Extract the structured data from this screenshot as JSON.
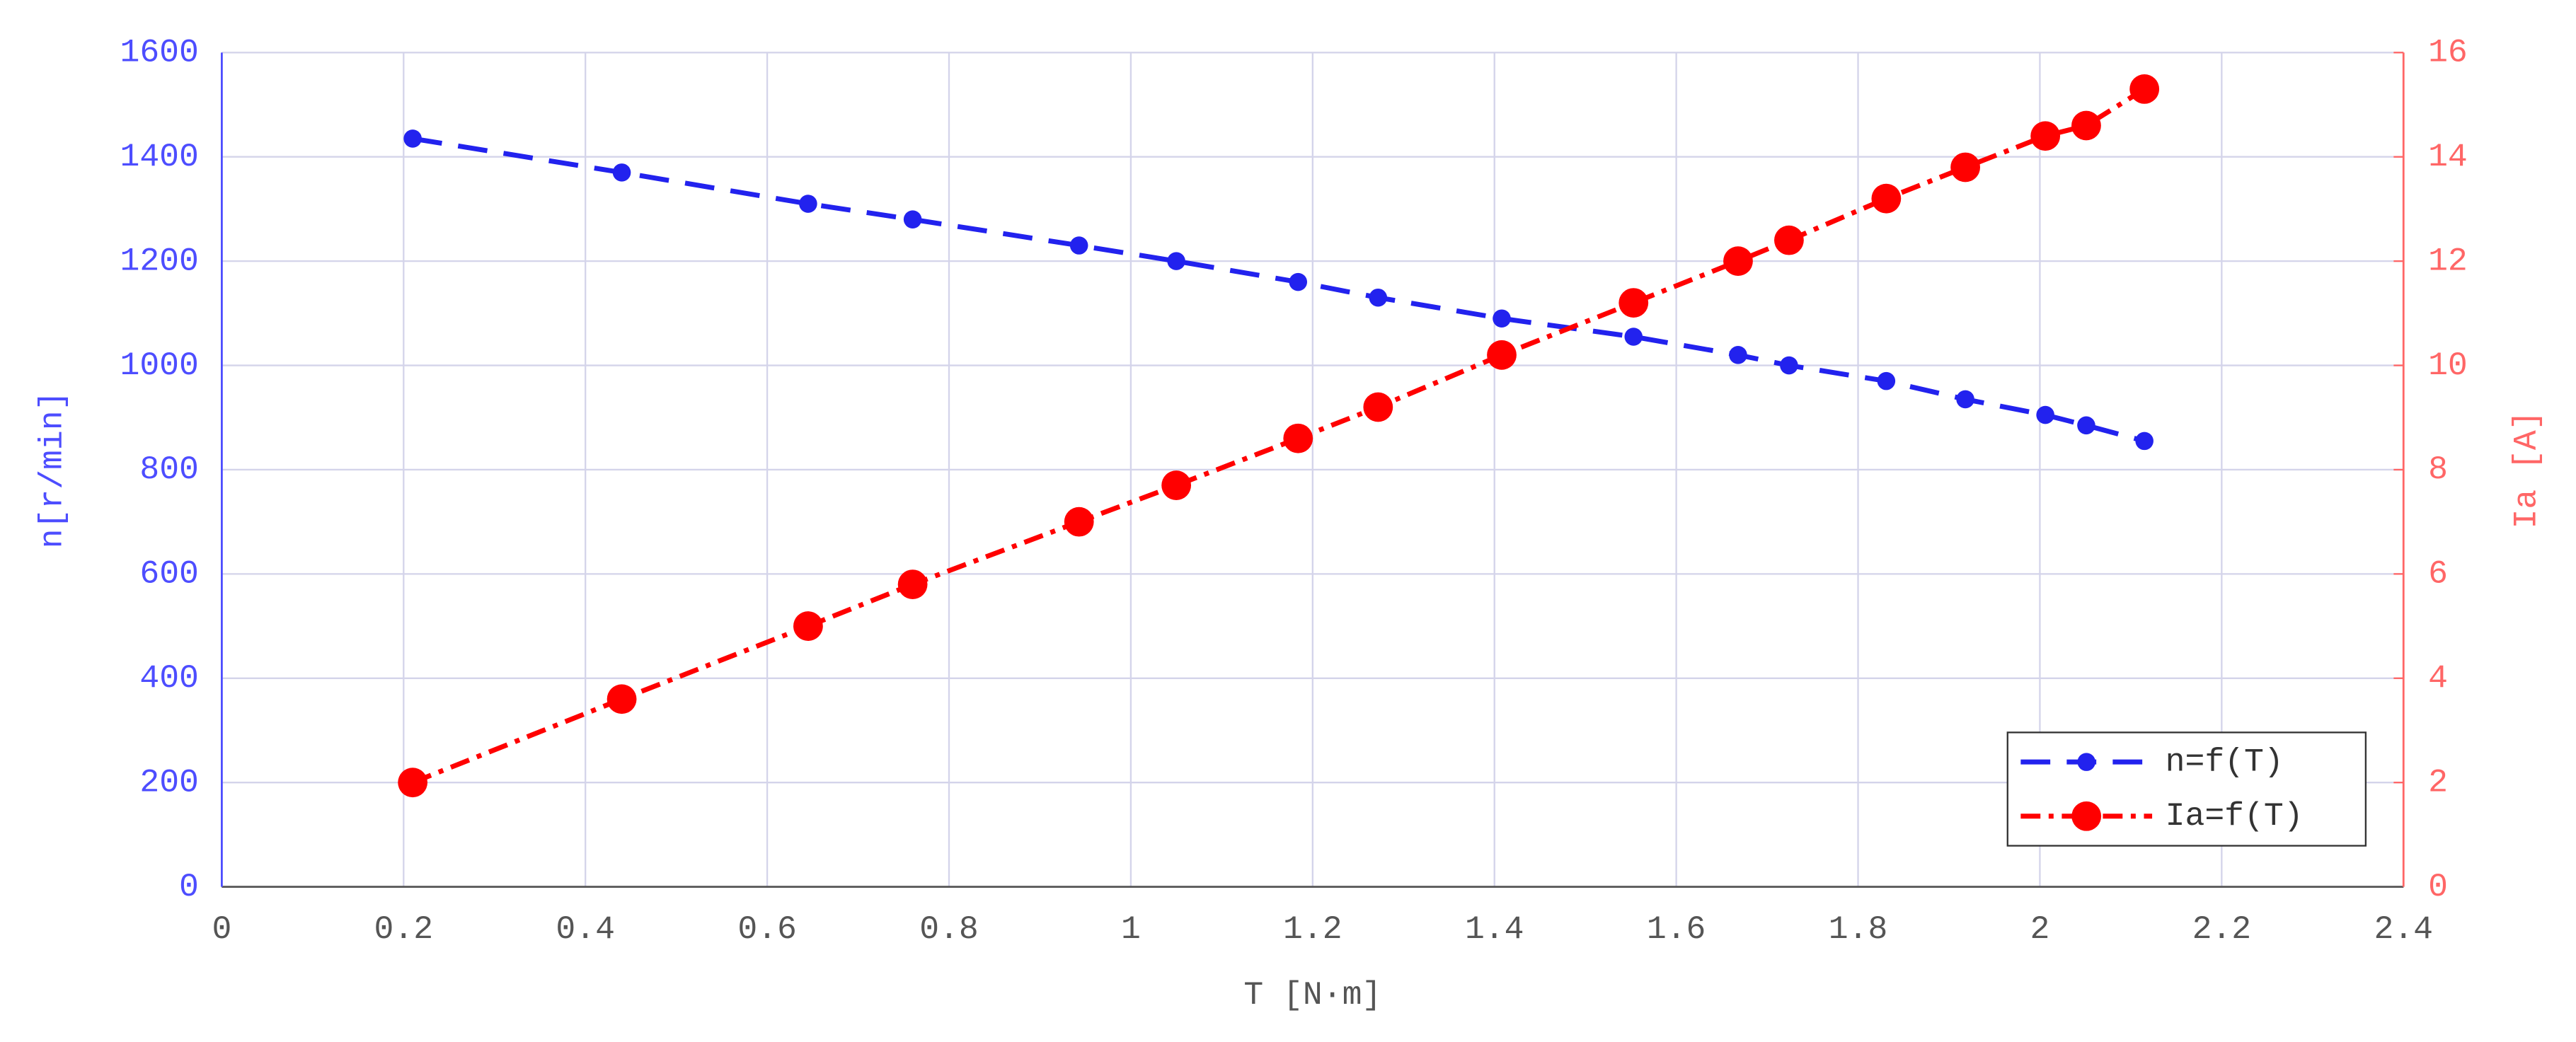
{
  "chart_data": {
    "type": "line",
    "xlabel": "T [N·m]",
    "ylabel": "n[r/min]",
    "y2label": "Ia [A]",
    "x": [
      0.21,
      0.44,
      0.645,
      0.76,
      0.943,
      1.05,
      1.184,
      1.272,
      1.408,
      1.553,
      1.668,
      1.724,
      1.831,
      1.918,
      2.006,
      2.051,
      2.115
    ],
    "series": [
      {
        "name": "n=f(T)",
        "color": "#2222ee",
        "values": [
          1435,
          1370,
          1310,
          1280,
          1230,
          1200,
          1160,
          1130,
          1090,
          1055,
          1020,
          1000,
          970,
          935,
          905,
          885,
          855
        ]
      },
      {
        "name": "Ia=f(T)",
        "color": "#ff0000",
        "axis": "y2",
        "values": [
          2.0,
          3.6,
          5.0,
          5.8,
          7.0,
          7.7,
          8.6,
          9.2,
          10.2,
          11.2,
          12.0,
          12.4,
          13.2,
          13.8,
          14.4,
          14.6,
          15.3
        ]
      }
    ],
    "xlim": [
      0,
      2.4
    ],
    "xticks": [
      0,
      0.2,
      0.4,
      0.6,
      0.8,
      1,
      1.2,
      1.4,
      1.6,
      1.8,
      2,
      2.2,
      2.4
    ],
    "ylim": [
      0,
      1600
    ],
    "yticks": [
      0,
      200,
      400,
      600,
      800,
      1000,
      1200,
      1400,
      1600
    ],
    "y2lim": [
      0,
      16
    ],
    "y2ticks": [
      0,
      2,
      4,
      6,
      8,
      10,
      12,
      14,
      16
    ],
    "grid": true,
    "legend": "lower right"
  }
}
